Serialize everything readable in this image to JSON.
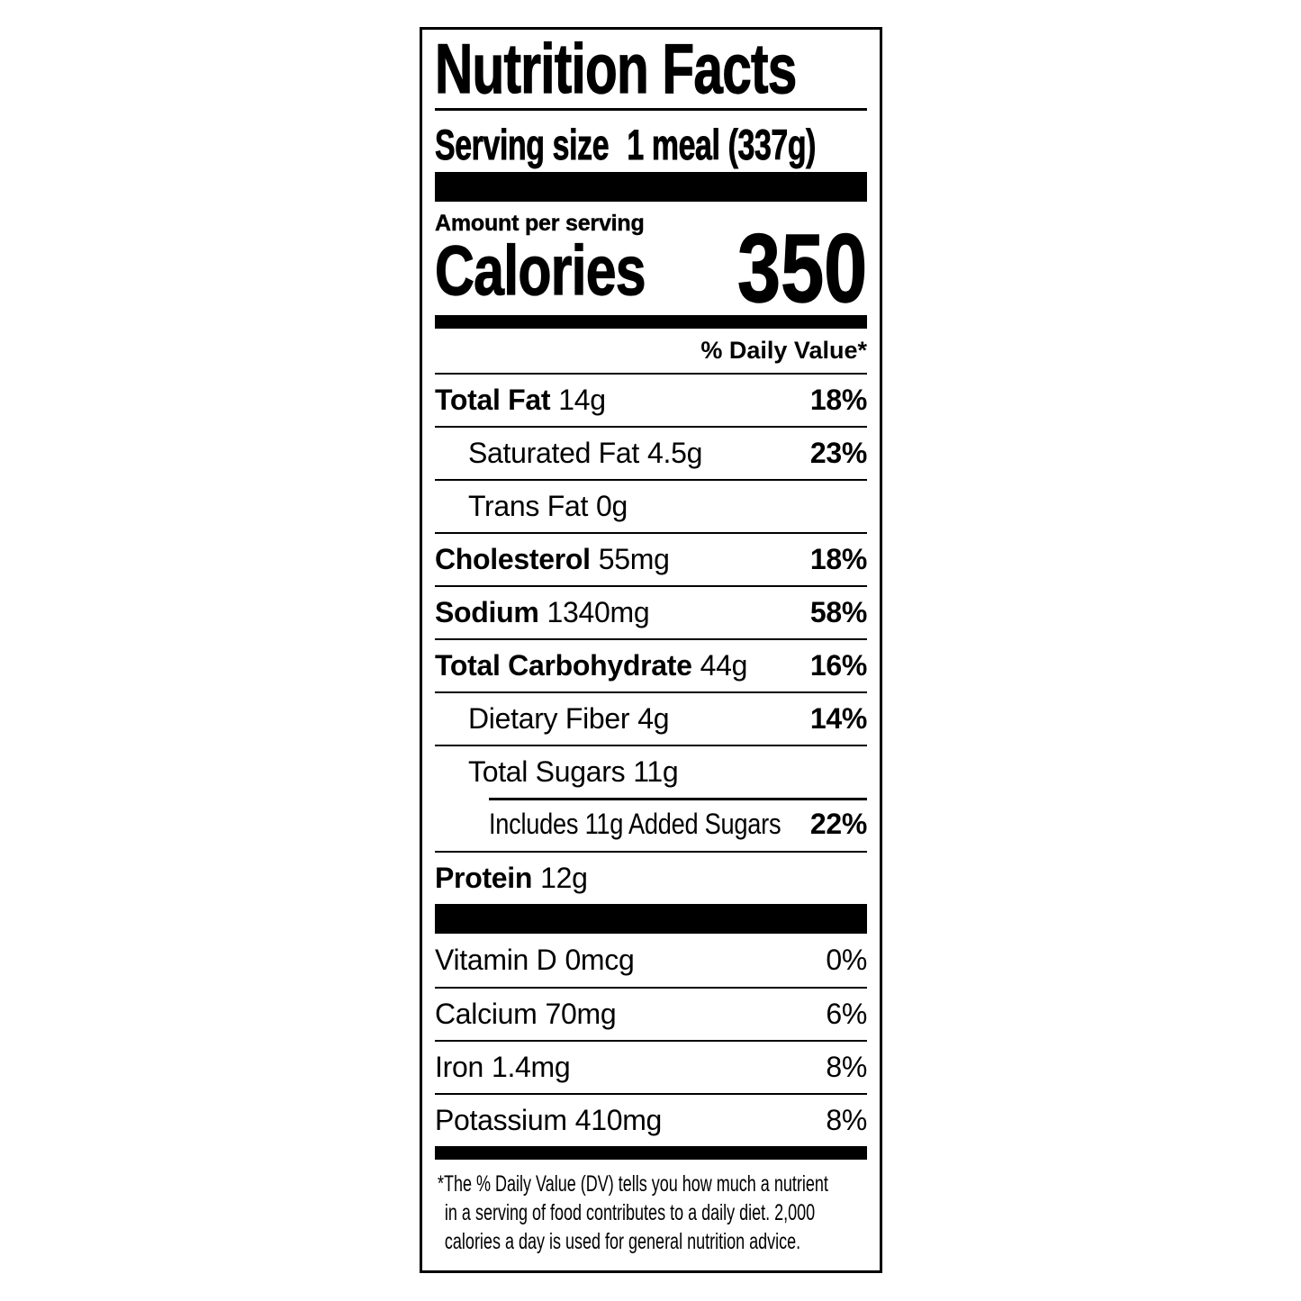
{
  "colors": {
    "ink": "#000000",
    "paper": "#ffffff"
  },
  "label": {
    "title": "Nutrition Facts",
    "serving": {
      "label": "Serving size",
      "value": "1 meal (337g)"
    },
    "amount_per_serving": "Amount per serving",
    "calories": {
      "label": "Calories",
      "value": "350"
    },
    "daily_value_header": "% Daily Value*",
    "nutrients": [
      {
        "name": "Total Fat",
        "amount": "14g",
        "dv": "18%"
      },
      {
        "name": "Saturated Fat",
        "amount": "4.5g",
        "dv": "23%"
      },
      {
        "name": "Trans Fat",
        "amount": "0g",
        "dv": ""
      },
      {
        "name": "Cholesterol",
        "amount": "55mg",
        "dv": "18%"
      },
      {
        "name": "Sodium",
        "amount": "1340mg",
        "dv": "58%"
      },
      {
        "name": "Total Carbohydrate",
        "amount": "44g",
        "dv": "16%"
      },
      {
        "name": "Dietary Fiber",
        "amount": "4g",
        "dv": "14%"
      },
      {
        "name": "Total Sugars",
        "amount": "11g",
        "dv": ""
      },
      {
        "name": "Includes 11g Added Sugars",
        "amount": "",
        "dv": "22%"
      },
      {
        "name": "Protein",
        "amount": "12g",
        "dv": ""
      }
    ],
    "micronutrients": [
      {
        "name": "Vitamin D",
        "amount": "0mcg",
        "dv": "0%"
      },
      {
        "name": "Calcium",
        "amount": "70mg",
        "dv": "6%"
      },
      {
        "name": "Iron",
        "amount": "1.4mg",
        "dv": "8%"
      },
      {
        "name": "Potassium",
        "amount": "410mg",
        "dv": "8%"
      }
    ],
    "footnote_lines": [
      "*The % Daily Value (DV) tells you how much a nutrient",
      "in a serving of food contributes to a daily diet. 2,000",
      "calories a day is used for general nutrition advice."
    ]
  }
}
